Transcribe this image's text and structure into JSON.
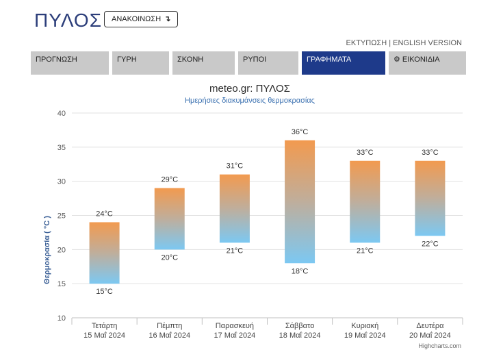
{
  "header": {
    "city": "ΠΥΛΟΣ",
    "announce_label": "ΑΝΑΚΟΙΝΩΣΗ",
    "announce_arrow": "↴",
    "print_label": "ΕΚΤΥΠΩΣΗ",
    "separator": " | ",
    "english_label": "ENGLISH VERSION"
  },
  "tabs": [
    {
      "label": "ΠΡΟΓΝΩΣΗ"
    },
    {
      "label": "ΓΥΡΗ"
    },
    {
      "label": "ΣΚΟΝΗ"
    },
    {
      "label": "ΡΥΠΟΙ"
    },
    {
      "label": "ΓΡΑΦΗΜΑΤΑ",
      "active": true
    },
    {
      "label": "ΕΙΚΟΝΙΔΙΑ",
      "icon": "gear-icon"
    }
  ],
  "colors": {
    "accent": "#1e3a8a",
    "bar_top": "#f29a4f",
    "bar_bottom": "#7cc8f2",
    "title": "#2b2b2b",
    "subtitle": "#3a70b0",
    "ylabel": "#3a5f96"
  },
  "chart_data": {
    "type": "columnrange",
    "title": "meteo.gr: ΠΥΛΟΣ",
    "subtitle": "Ημερήσιες διακυμάνσεις θερμοκρασίας",
    "ylabel": "Θερμοκρασία ( °C )",
    "ylim": [
      10,
      40
    ],
    "yticks": [
      10,
      15,
      20,
      25,
      30,
      35,
      40
    ],
    "grid": true,
    "unit": "°C",
    "credits": "Highcharts.com",
    "categories": [
      {
        "day": "Τετάρτη",
        "date": "15 Μαΐ 2024"
      },
      {
        "day": "Πέμπτη",
        "date": "16 Μαΐ 2024"
      },
      {
        "day": "Παρασκευή",
        "date": "17 Μαΐ 2024"
      },
      {
        "day": "Σάββατο",
        "date": "18 Μαΐ 2024"
      },
      {
        "day": "Κυριακή",
        "date": "19 Μαΐ 2024"
      },
      {
        "day": "Δευτέρα",
        "date": "20 Μαΐ 2024"
      }
    ],
    "min": [
      15,
      20,
      21,
      18,
      21,
      22
    ],
    "max": [
      24,
      29,
      31,
      36,
      33,
      33
    ]
  }
}
